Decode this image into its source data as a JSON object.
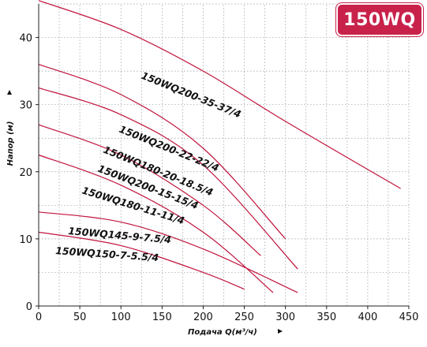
{
  "chart_data": {
    "type": "line",
    "title": "150WQ",
    "xlabel": "Подача Q(м³/ч)",
    "ylabel": "Напор (м)",
    "xlim": [
      0,
      450
    ],
    "ylim": [
      0,
      45
    ],
    "xticks": [
      0,
      50,
      100,
      150,
      200,
      250,
      300,
      350,
      400,
      450
    ],
    "yticks": [
      0,
      10,
      20,
      30,
      40
    ],
    "grid": true,
    "line_color": "#c0143c",
    "badge_color": "#c8224b",
    "series": [
      {
        "name": "150WQ200-35-37/4",
        "x": [
          0,
          100,
          200,
          300,
          440
        ],
        "y": [
          45.5,
          41.2,
          35.0,
          27.5,
          17.5
        ]
      },
      {
        "name": "150WQ200-22-22/4",
        "x": [
          0,
          100,
          200,
          300
        ],
        "y": [
          36.0,
          31.5,
          23.5,
          10.0
        ]
      },
      {
        "name": "150WQ180-20-18.5/4",
        "x": [
          0,
          100,
          200,
          315
        ],
        "y": [
          32.5,
          28.5,
          21.0,
          5.5
        ]
      },
      {
        "name": "150WQ200-15-15/4",
        "x": [
          0,
          100,
          200,
          270
        ],
        "y": [
          27.0,
          22.5,
          15.0,
          7.5
        ]
      },
      {
        "name": "150WQ180-11-11/4",
        "x": [
          0,
          100,
          200,
          285
        ],
        "y": [
          22.5,
          18.0,
          11.0,
          2.0
        ]
      },
      {
        "name": "150WQ145-9-7.5/4",
        "x": [
          0,
          100,
          200,
          315
        ],
        "y": [
          14.0,
          12.5,
          8.5,
          2.0
        ]
      },
      {
        "name": "150WQ150-7-5.5/4",
        "x": [
          0,
          100,
          200,
          250
        ],
        "y": [
          11.0,
          9.0,
          5.0,
          2.5
        ]
      }
    ]
  }
}
